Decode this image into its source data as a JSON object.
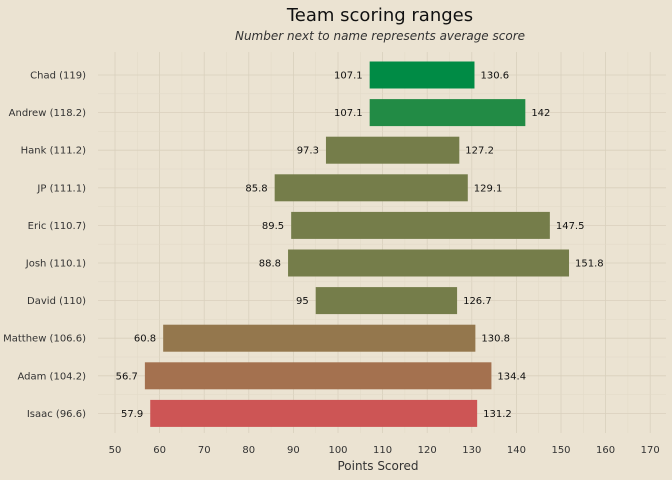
{
  "chart_data": {
    "type": "bar",
    "orientation": "horizontal",
    "title": "Team scoring ranges",
    "subtitle": "Number next to name represents average score",
    "xlabel": "Points Scored",
    "ylabel": "",
    "xlim": [
      47,
      172
    ],
    "x_ticks": [
      50,
      60,
      70,
      80,
      90,
      100,
      110,
      120,
      130,
      140,
      150,
      160,
      170
    ],
    "grid": true,
    "legend": "none",
    "categories": [
      "Chad (119)",
      "Andrew (118.2)",
      "Hank (111.2)",
      "JP (111.1)",
      "Eric (110.7)",
      "Josh (110.1)",
      "David (110)",
      "Matthew (106.6)",
      "Adam (104.2)",
      "Isaac (96.6)"
    ],
    "ranges": [
      {
        "min": 107.1,
        "max": 130.6,
        "min_label": "107.1",
        "max_label": "130.6",
        "color": "#008b45"
      },
      {
        "min": 107.1,
        "max": 142,
        "min_label": "107.1",
        "max_label": "142",
        "color": "#228b45"
      },
      {
        "min": 97.3,
        "max": 127.2,
        "min_label": "97.3",
        "max_label": "127.2",
        "color": "#757d4a"
      },
      {
        "min": 85.8,
        "max": 129.1,
        "min_label": "85.8",
        "max_label": "129.1",
        "color": "#757d4a"
      },
      {
        "min": 89.5,
        "max": 147.5,
        "min_label": "89.5",
        "max_label": "147.5",
        "color": "#757d4a"
      },
      {
        "min": 88.8,
        "max": 151.8,
        "min_label": "88.8",
        "max_label": "151.8",
        "color": "#757d4a"
      },
      {
        "min": 95,
        "max": 126.7,
        "min_label": "95",
        "max_label": "126.7",
        "color": "#757d4a"
      },
      {
        "min": 60.8,
        "max": 130.8,
        "min_label": "60.8",
        "max_label": "130.8",
        "color": "#94774d"
      },
      {
        "min": 56.7,
        "max": 134.4,
        "min_label": "56.7",
        "max_label": "134.4",
        "color": "#a4714f"
      },
      {
        "min": 57.9,
        "max": 131.2,
        "min_label": "57.9",
        "max_label": "131.2",
        "color": "#cd5555"
      }
    ]
  }
}
